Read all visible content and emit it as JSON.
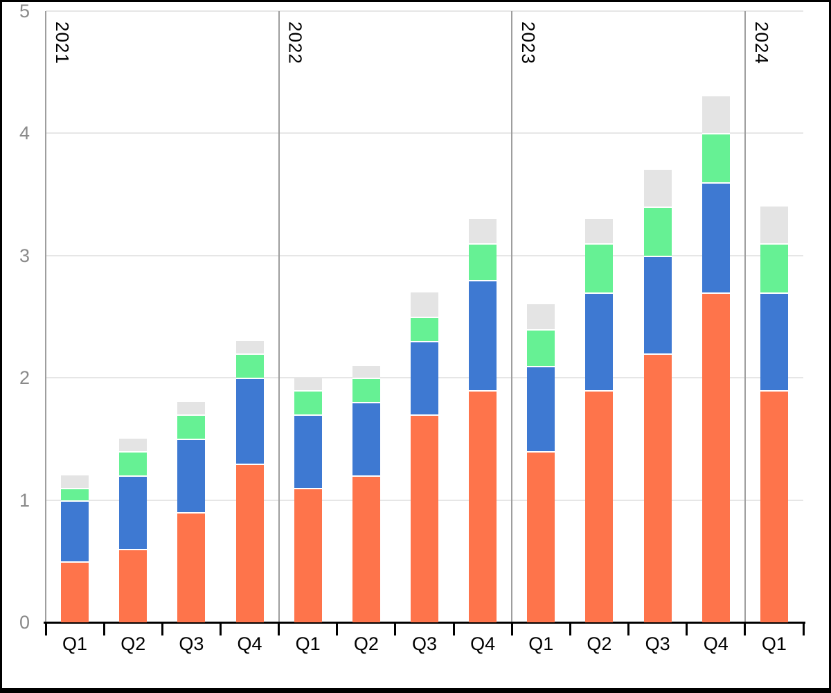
{
  "chart_data": {
    "type": "bar",
    "stacked": true,
    "legend": "none",
    "grid": "horizontal",
    "ylim": [
      0,
      5
    ],
    "yticks": [
      "0",
      "1",
      "2",
      "3",
      "4",
      "5"
    ],
    "groups": [
      {
        "year": "2021",
        "quarters": [
          "Q1",
          "Q2",
          "Q3",
          "Q4"
        ]
      },
      {
        "year": "2022",
        "quarters": [
          "Q1",
          "Q2",
          "Q3",
          "Q4"
        ]
      },
      {
        "year": "2023",
        "quarters": [
          "Q1",
          "Q2",
          "Q3",
          "Q4"
        ]
      },
      {
        "year": "2024",
        "quarters": [
          "Q1"
        ]
      }
    ],
    "categories": [
      "Q1",
      "Q2",
      "Q3",
      "Q4",
      "Q1",
      "Q2",
      "Q3",
      "Q4",
      "Q1",
      "Q2",
      "Q3",
      "Q4",
      "Q1"
    ],
    "series": [
      {
        "name": "orange",
        "color": "#FE744B",
        "values": [
          0.5,
          0.6,
          0.9,
          1.3,
          1.1,
          1.2,
          1.7,
          1.9,
          1.4,
          1.9,
          2.2,
          2.7,
          1.9
        ]
      },
      {
        "name": "blue",
        "color": "#3E79D2",
        "values": [
          0.5,
          0.6,
          0.6,
          0.7,
          0.6,
          0.6,
          0.6,
          0.9,
          0.7,
          0.8,
          0.8,
          0.9,
          0.8
        ]
      },
      {
        "name": "green",
        "color": "#66F194",
        "values": [
          0.1,
          0.2,
          0.2,
          0.2,
          0.2,
          0.2,
          0.2,
          0.3,
          0.3,
          0.4,
          0.4,
          0.4,
          0.4
        ]
      },
      {
        "name": "gray",
        "color": "#E4E4E4",
        "values": [
          0.1,
          0.1,
          0.1,
          0.1,
          0.1,
          0.1,
          0.2,
          0.2,
          0.2,
          0.2,
          0.3,
          0.3,
          0.3
        ]
      }
    ],
    "totals": [
      1.2,
      1.5,
      1.8,
      2.3,
      2.0,
      2.1,
      2.7,
      3.3,
      2.6,
      3.3,
      3.7,
      4.3,
      3.4
    ]
  },
  "colors": {
    "gridline": "#E6E6E6",
    "year_separator": "#9E9E9E",
    "y_tick_label": "#8A8A8A",
    "axis_line": "#000000",
    "frame_border": "#000000",
    "background": "#FFFFFF",
    "segment_gap": "#FFFFFF"
  }
}
